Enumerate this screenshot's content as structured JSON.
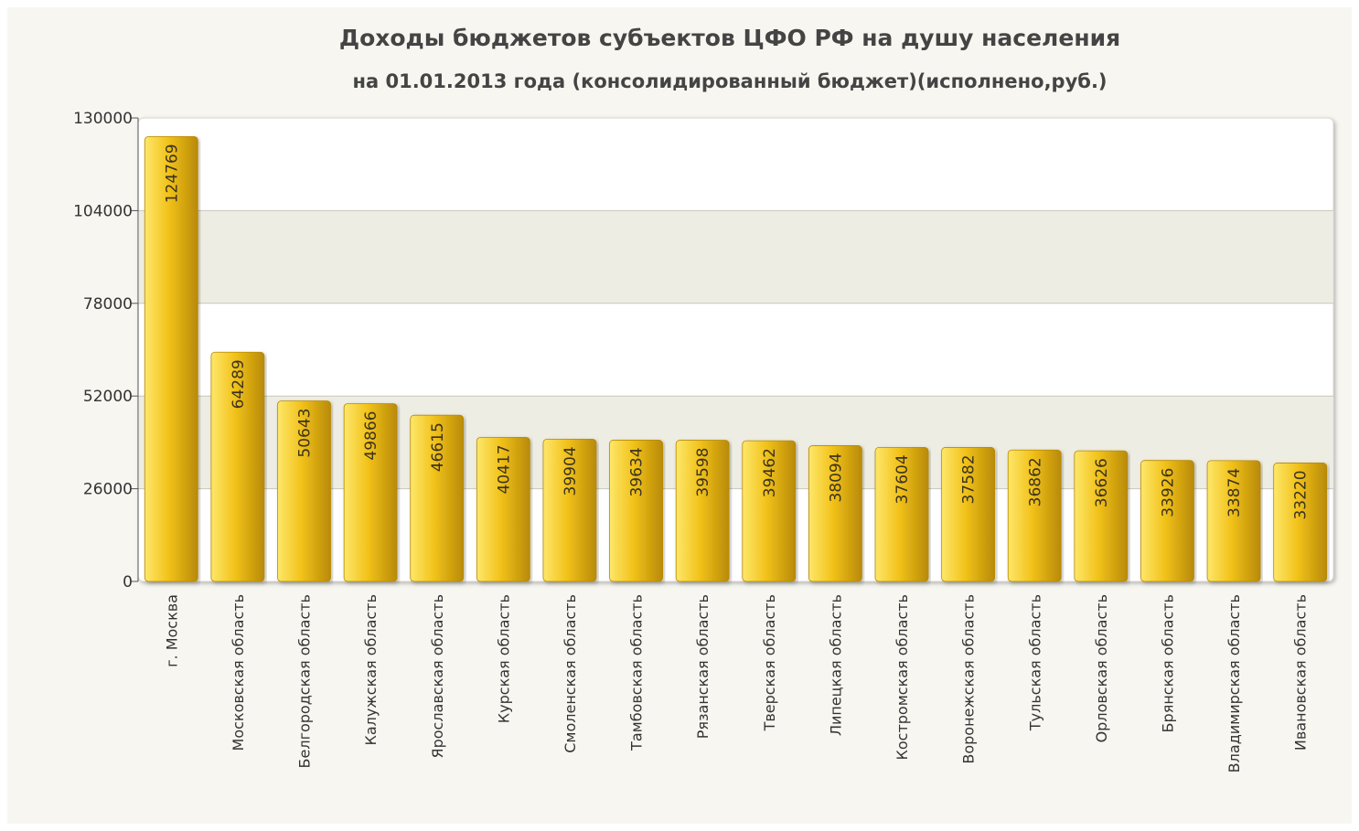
{
  "chart_data": {
    "type": "bar",
    "title": "Доходы бюджетов субъектов ЦФО РФ на душу населения",
    "subtitle": "на 01.01.2013 года (консолидированный бюджет)(исполнено,руб.)",
    "xlabel": "",
    "ylabel": "",
    "ylim": [
      0,
      130000
    ],
    "yticks": [
      "0",
      "26000",
      "52000",
      "78000",
      "104000",
      "130000"
    ],
    "grid": true,
    "categories": [
      "г. Москва",
      "Московская область",
      "Белгородская область",
      "Калужская область",
      "Ярославская область",
      "Курская область",
      "Смоленская область",
      "Тамбовская область",
      "Рязанская область",
      "Тверская область",
      "Липецкая область",
      "Костромская область",
      "Воронежская область",
      "Тульская область",
      "Орловская область",
      "Брянская область",
      "Владимирская область",
      "Ивановская область"
    ],
    "values": [
      124769,
      64289,
      50643,
      49866,
      46615,
      40417,
      39904,
      39634,
      39598,
      39462,
      38094,
      37604,
      37582,
      36862,
      36626,
      33926,
      33874,
      33220
    ],
    "data_labels": [
      "124769",
      "64289",
      "50643",
      "49866",
      "46615",
      "40417",
      "39904",
      "39634",
      "39598",
      "39462",
      "38094",
      "37604",
      "37582",
      "36862",
      "36626",
      "33926",
      "33874",
      "33220"
    ],
    "colors": {
      "bar_light": "#fde76a",
      "bar_mid": "#f2c21a",
      "bar_dark": "#b88a06",
      "band": "#eeede4",
      "plot_bg": "#ffffff",
      "grid": "#c9c7ba"
    }
  }
}
